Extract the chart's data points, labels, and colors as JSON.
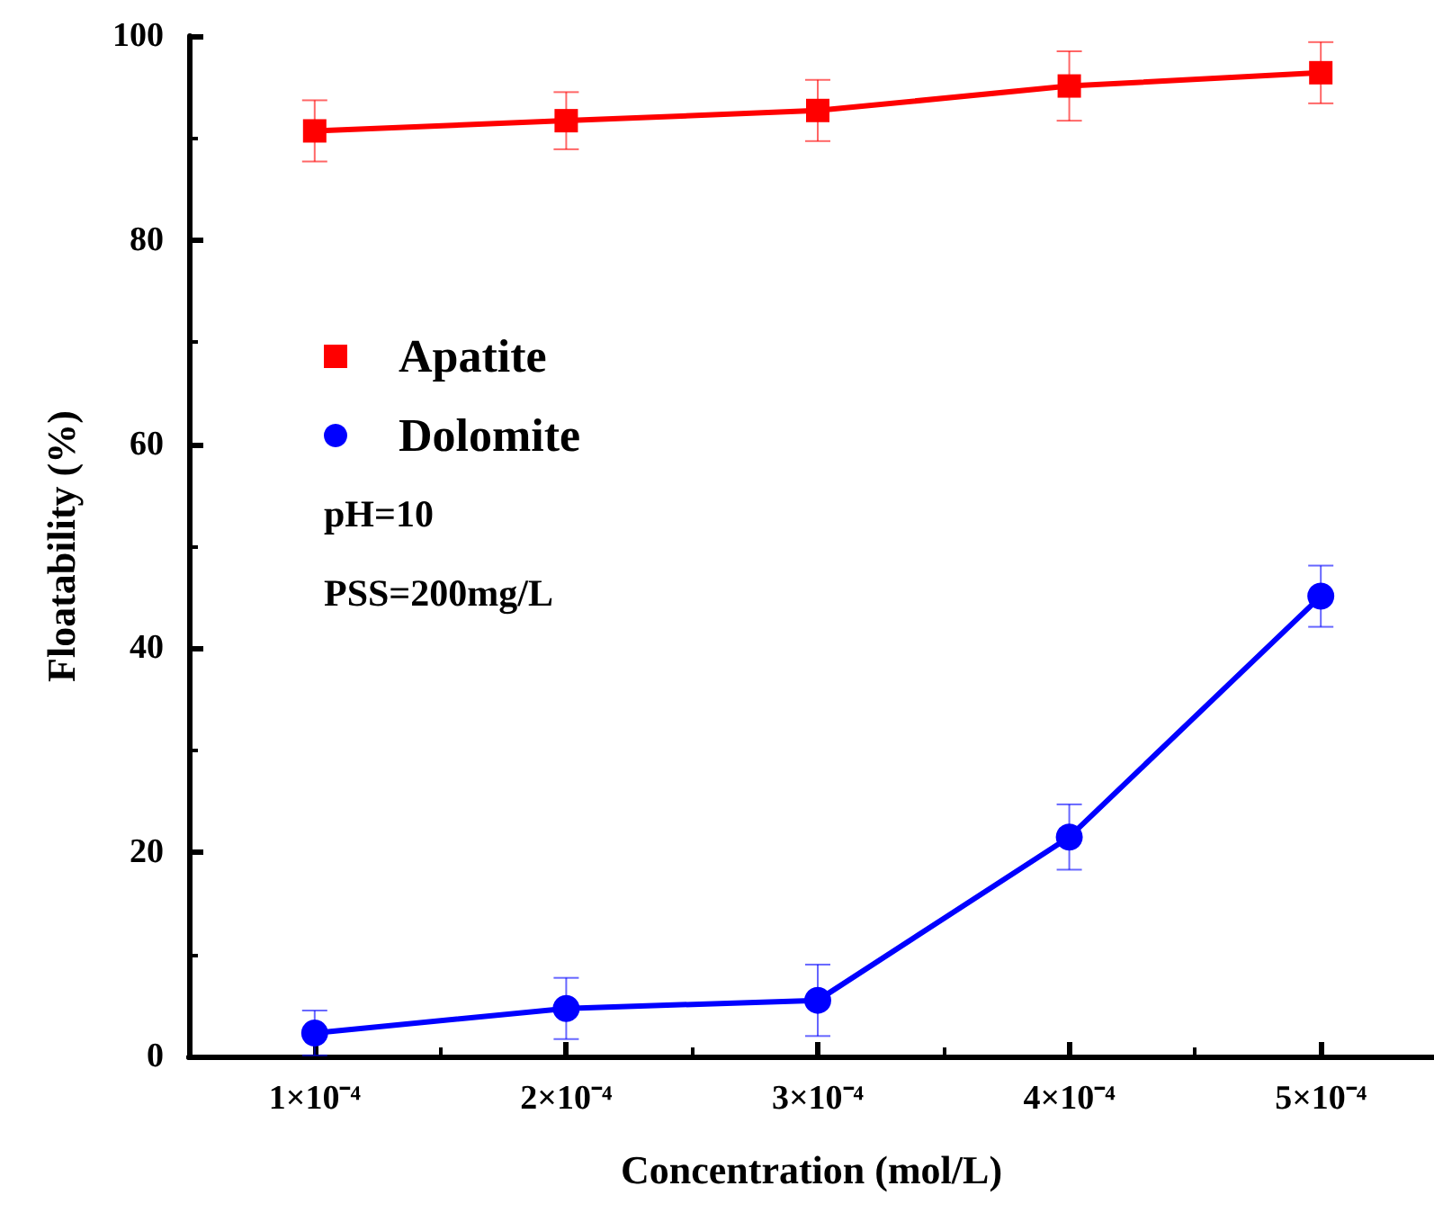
{
  "chart_data": {
    "type": "line",
    "xlabel": "Concentration (mol/L)",
    "ylabel": "Floatability (%)",
    "x": [
      0.0001,
      0.0002,
      0.0003,
      0.0004,
      0.0005
    ],
    "xlim": [
      5e-05,
      0.000545
    ],
    "xticks": [
      {
        "value": 0.0001,
        "label": "1×10⁻⁴"
      },
      {
        "value": 0.0002,
        "label": "2×10⁻⁴"
      },
      {
        "value": 0.0003,
        "label": "3×10⁻⁴"
      },
      {
        "value": 0.0004,
        "label": "4×10⁻⁴"
      },
      {
        "value": 0.0005,
        "label": "5×10⁻⁴"
      }
    ],
    "ylim": [
      0,
      100
    ],
    "yticks": [
      0,
      20,
      40,
      60,
      80,
      100
    ],
    "series": [
      {
        "name": "Apatite",
        "color": "#ff0000",
        "marker": "square",
        "values": [
          90.7,
          91.7,
          92.7,
          95.1,
          96.4
        ],
        "errors": [
          3,
          2.8,
          3,
          3.4,
          3
        ]
      },
      {
        "name": "Dolomite",
        "color": "#0000ff",
        "marker": "circle",
        "values": [
          2.3,
          4.7,
          5.5,
          21.5,
          45.1
        ],
        "errors": [
          2.2,
          3,
          3.5,
          3.2,
          3
        ]
      }
    ],
    "annotations": [
      "pH=10",
      "PSS=200mg/L"
    ],
    "legend": "top left",
    "grid": false,
    "line_style": "solid"
  }
}
